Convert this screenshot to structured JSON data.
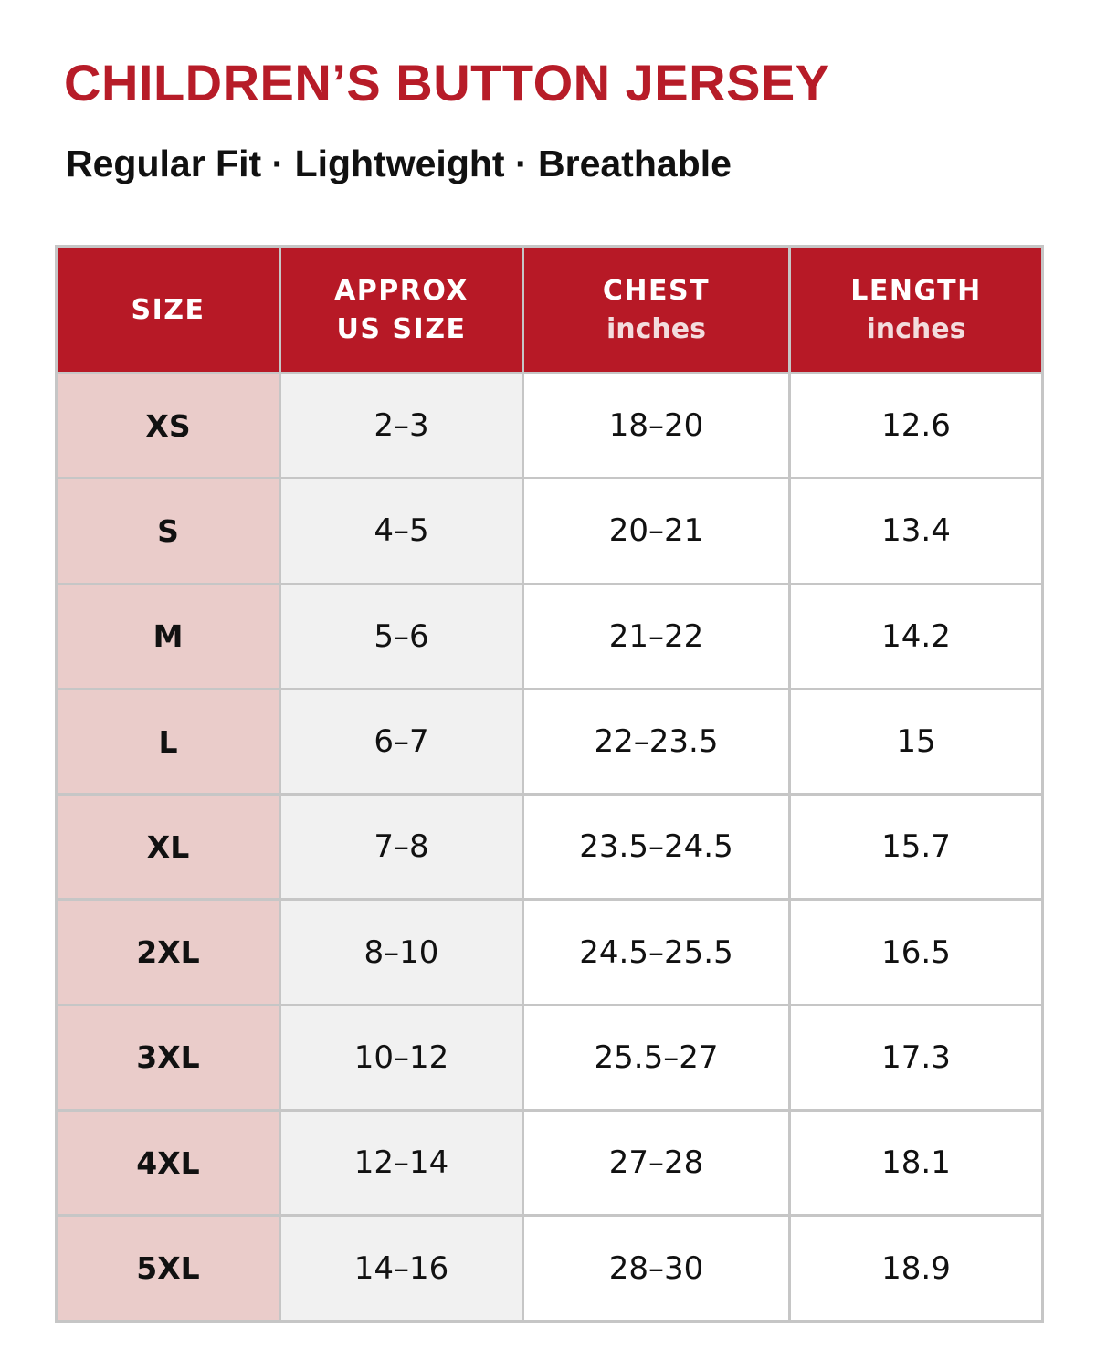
{
  "title": "CHILDREN’S BUTTON JERSEY",
  "subtitle": "Regular Fit · Lightweight · Breathable",
  "colors": {
    "accent_red": "#b71926",
    "size_column_tint": "#eaccca",
    "us_size_column_tint": "#f1f1f1",
    "grid_line": "#c6c6c6"
  },
  "table": {
    "headers": [
      {
        "main": "SIZE",
        "sub": ""
      },
      {
        "main": "APPROX",
        "sub": "US SIZE"
      },
      {
        "main": "CHEST",
        "sub": "inches"
      },
      {
        "main": "LENGTH",
        "sub": "inches"
      }
    ],
    "rows": [
      {
        "size": "XS",
        "us": "2–3",
        "chest": "18–20",
        "length": "12.6"
      },
      {
        "size": "S",
        "us": "4–5",
        "chest": "20–21",
        "length": "13.4"
      },
      {
        "size": "M",
        "us": "5–6",
        "chest": "21–22",
        "length": "14.2"
      },
      {
        "size": "L",
        "us": "6–7",
        "chest": "22–23.5",
        "length": "15"
      },
      {
        "size": "XL",
        "us": "7–8",
        "chest": "23.5–24.5",
        "length": "15.7"
      },
      {
        "size": "2XL",
        "us": "8–10",
        "chest": "24.5–25.5",
        "length": "16.5"
      },
      {
        "size": "3XL",
        "us": "10–12",
        "chest": "25.5–27",
        "length": "17.3"
      },
      {
        "size": "4XL",
        "us": "12–14",
        "chest": "27–28",
        "length": "18.1"
      },
      {
        "size": "5XL",
        "us": "14–16",
        "chest": "28–30",
        "length": "18.9"
      }
    ]
  }
}
